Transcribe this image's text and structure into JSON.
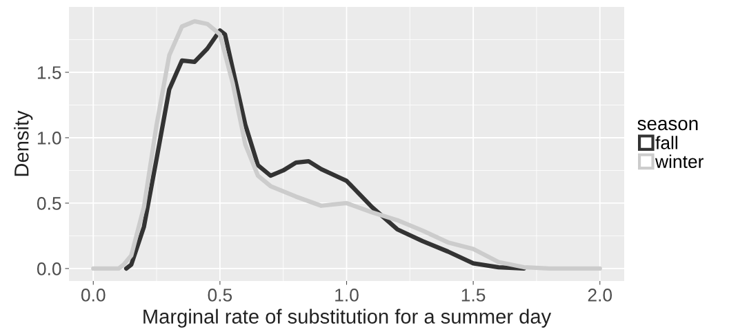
{
  "chart_data": {
    "type": "line",
    "xlabel": "Marginal rate of substitution for a summer day",
    "ylabel": "Density",
    "legend_title": "season",
    "legend": "right",
    "grid": true,
    "xlim": [
      -0.096,
      2.096
    ],
    "ylim": [
      -0.095,
      2.0
    ],
    "xticks": [
      {
        "value": 0,
        "label": "0.0"
      },
      {
        "value": 0.5,
        "label": "0.5"
      },
      {
        "value": 1,
        "label": "1.0"
      },
      {
        "value": 1.5,
        "label": "1.5"
      },
      {
        "value": 2,
        "label": "2.0"
      }
    ],
    "yticks": [
      {
        "value": 0,
        "label": "0.0"
      },
      {
        "value": 0.5,
        "label": "0.5"
      },
      {
        "value": 1,
        "label": "1.0"
      },
      {
        "value": 1.5,
        "label": "1.5"
      }
    ],
    "series": [
      {
        "name": "fall",
        "color": "#333333",
        "x": [
          0.13,
          0.15,
          0.2,
          0.25,
          0.3,
          0.35,
          0.4,
          0.45,
          0.5,
          0.52,
          0.55,
          0.6,
          0.65,
          0.7,
          0.75,
          0.8,
          0.85,
          0.9,
          1.0,
          1.1,
          1.2,
          1.3,
          1.4,
          1.5,
          1.6,
          1.7
        ],
        "values": [
          0,
          0.03,
          0.32,
          0.84,
          1.37,
          1.59,
          1.58,
          1.68,
          1.82,
          1.79,
          1.53,
          1.1,
          0.79,
          0.71,
          0.75,
          0.81,
          0.82,
          0.76,
          0.67,
          0.47,
          0.3,
          0.21,
          0.13,
          0.04,
          0.01,
          0
        ]
      },
      {
        "name": "winter",
        "color": "#cccccc",
        "x": [
          0.0,
          0.1,
          0.12,
          0.15,
          0.2,
          0.25,
          0.3,
          0.35,
          0.4,
          0.45,
          0.5,
          0.55,
          0.6,
          0.65,
          0.7,
          0.8,
          0.9,
          1.0,
          1.1,
          1.2,
          1.3,
          1.4,
          1.5,
          1.6,
          1.7,
          1.8,
          2.0
        ],
        "values": [
          0,
          0,
          0.03,
          0.1,
          0.47,
          1.1,
          1.63,
          1.85,
          1.89,
          1.87,
          1.79,
          1.42,
          0.95,
          0.71,
          0.63,
          0.55,
          0.48,
          0.5,
          0.43,
          0.37,
          0.29,
          0.2,
          0.15,
          0.05,
          0.01,
          0,
          0
        ]
      }
    ]
  }
}
